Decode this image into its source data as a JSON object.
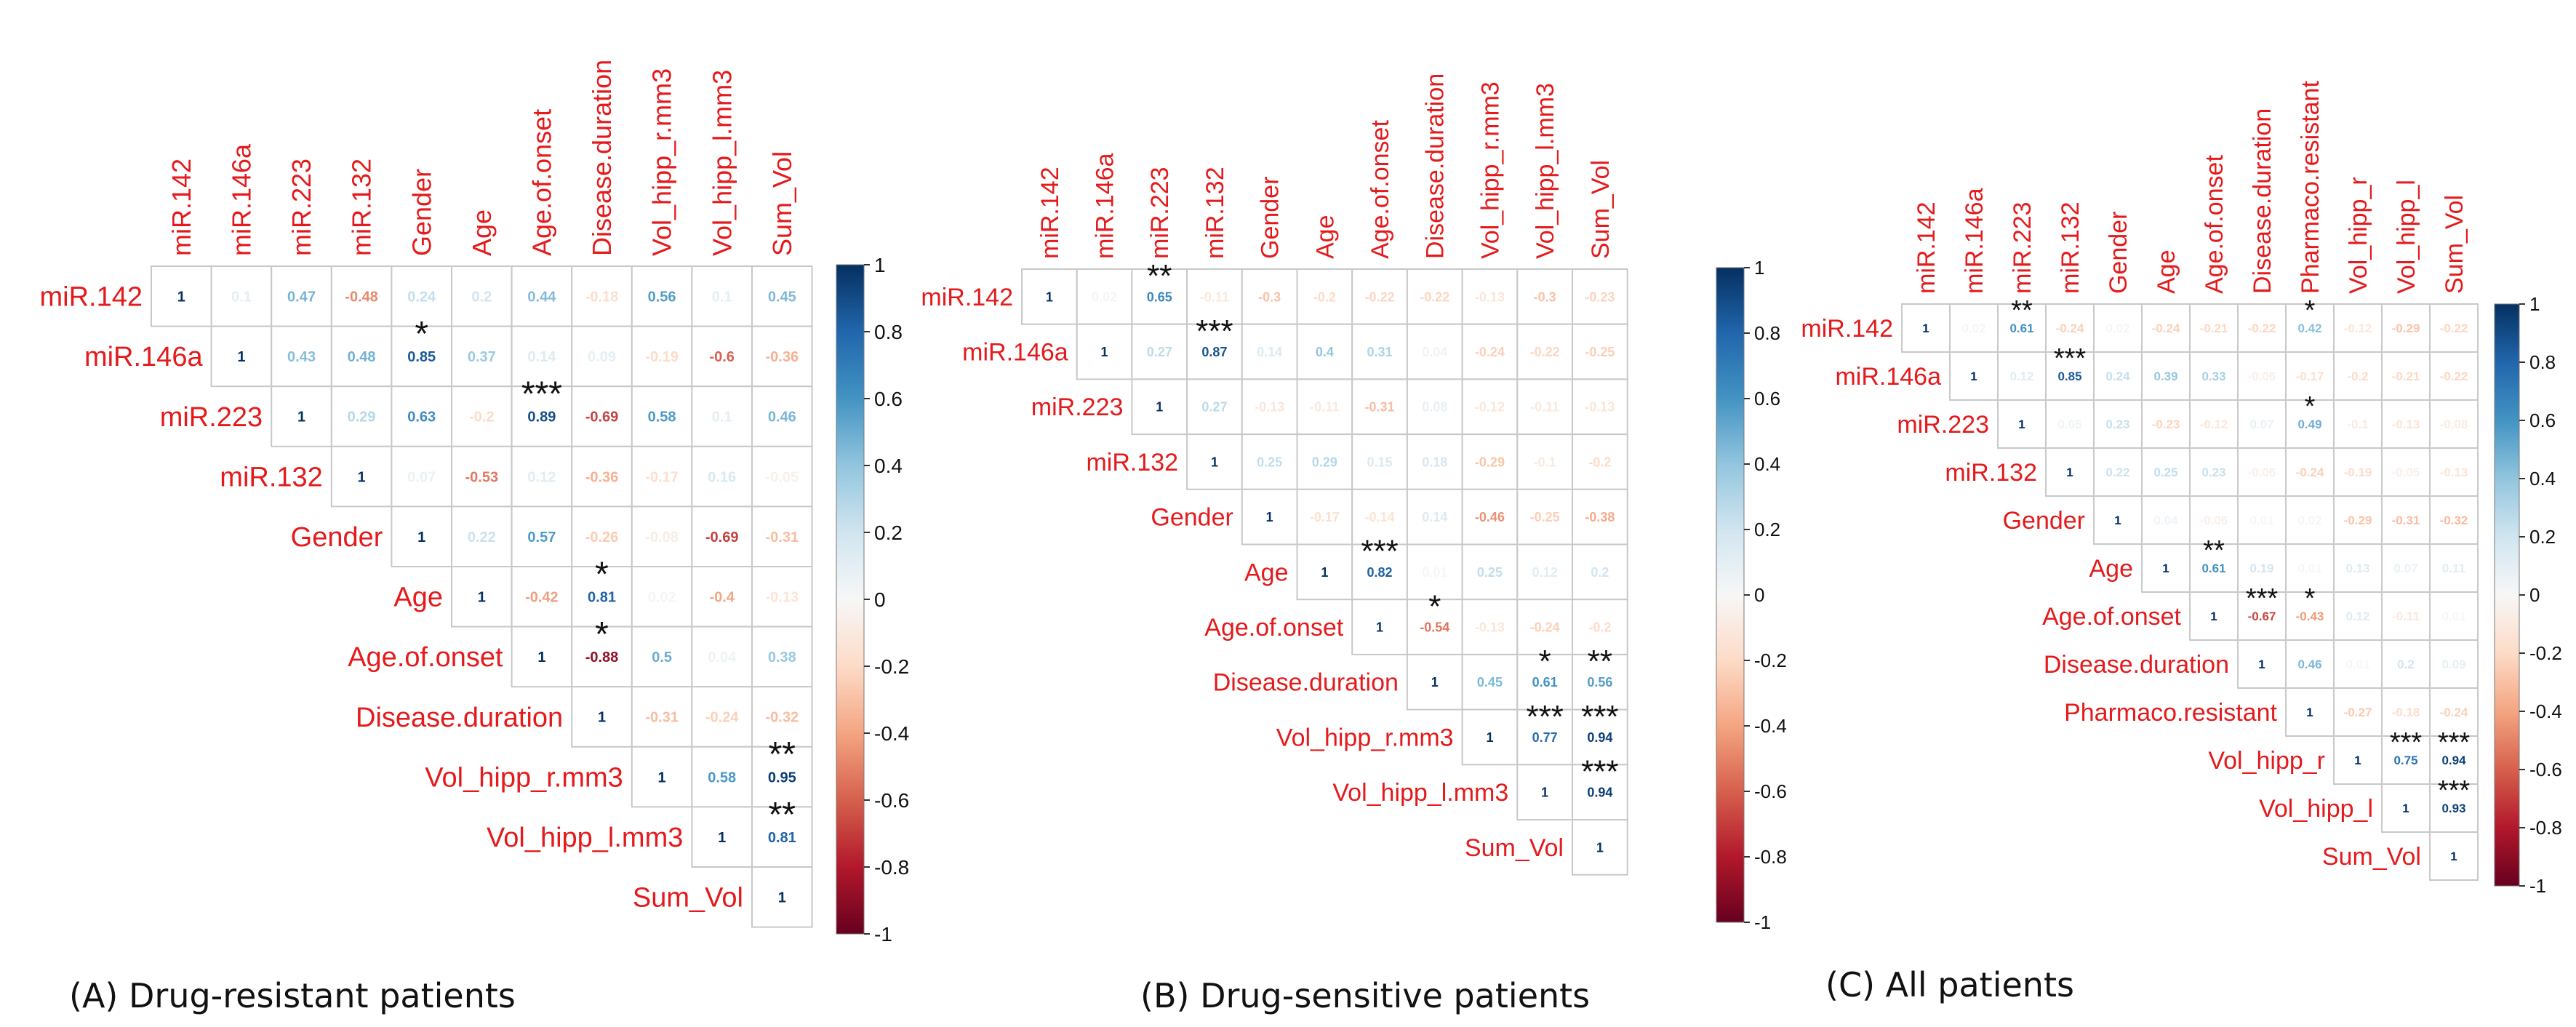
{
  "chart_data": [
    {
      "type": "heatmap",
      "title": "(A) Drug-resistant patients",
      "variables": [
        "miR.142",
        "miR.146a",
        "miR.223",
        "miR.132",
        "Gender",
        "Age",
        "Age.of.onset",
        "Disease.duration",
        "Vol_hipp_r.mm3",
        "Vol_hipp_l.mm3",
        "Sum_Vol"
      ],
      "matrix": [
        [
          1,
          0.1,
          0.47,
          -0.48,
          0.24,
          0.2,
          0.44,
          -0.18,
          0.56,
          0.1,
          0.45
        ],
        [
          null,
          1,
          0.43,
          0.48,
          0.85,
          0.37,
          0.14,
          0.09,
          -0.19,
          -0.6,
          -0.36
        ],
        [
          null,
          null,
          1,
          0.29,
          0.63,
          -0.2,
          0.89,
          -0.69,
          0.58,
          0.1,
          0.46
        ],
        [
          null,
          null,
          null,
          1,
          0.07,
          -0.53,
          0.12,
          -0.36,
          -0.17,
          0.16,
          -0.05
        ],
        [
          null,
          null,
          null,
          null,
          1,
          0.22,
          0.57,
          -0.26,
          -0.08,
          -0.69,
          -0.31
        ],
        [
          null,
          null,
          null,
          null,
          null,
          1,
          -0.42,
          0.81,
          0.02,
          -0.4,
          -0.13
        ],
        [
          null,
          null,
          null,
          null,
          null,
          null,
          1,
          -0.88,
          0.5,
          0.04,
          0.38
        ],
        [
          null,
          null,
          null,
          null,
          null,
          null,
          null,
          1,
          -0.31,
          -0.24,
          -0.32
        ],
        [
          null,
          null,
          null,
          null,
          null,
          null,
          null,
          null,
          1,
          0.58,
          0.95
        ],
        [
          null,
          null,
          null,
          null,
          null,
          null,
          null,
          null,
          null,
          1,
          0.81
        ],
        [
          null,
          null,
          null,
          null,
          null,
          null,
          null,
          null,
          null,
          null,
          1
        ]
      ],
      "significance": [
        {
          "row": 1,
          "col": 4,
          "mark": "*"
        },
        {
          "row": 2,
          "col": 6,
          "mark": "***"
        },
        {
          "row": 5,
          "col": 7,
          "mark": "*"
        },
        {
          "row": 6,
          "col": 7,
          "mark": "*"
        },
        {
          "row": 8,
          "col": 10,
          "mark": "**"
        },
        {
          "row": 9,
          "col": 10,
          "mark": "**"
        }
      ],
      "colorbar": {
        "range": [
          -1,
          1
        ],
        "ticks": [
          "1",
          "0.8",
          "0.6",
          "0.4",
          "0.2",
          "0",
          "-0.2",
          "-0.4",
          "-0.6",
          "-0.8",
          "-1"
        ]
      }
    },
    {
      "type": "heatmap",
      "title": "(B) Drug-sensitive patients",
      "variables": [
        "miR.142",
        "miR.146a",
        "miR.223",
        "miR.132",
        "Gender",
        "Age",
        "Age.of.onset",
        "Disease.duration",
        "Vol_hipp_r.mm3",
        "Vol_hipp_l.mm3",
        "Sum_Vol"
      ],
      "matrix": [
        [
          1,
          0.02,
          0.65,
          -0.11,
          -0.3,
          -0.2,
          -0.22,
          -0.22,
          -0.13,
          -0.3,
          -0.23
        ],
        [
          null,
          1,
          0.27,
          0.87,
          0.14,
          0.4,
          0.31,
          0.04,
          -0.24,
          -0.22,
          -0.25
        ],
        [
          null,
          null,
          1,
          0.27,
          -0.13,
          -0.11,
          -0.31,
          0.08,
          -0.12,
          -0.11,
          -0.13
        ],
        [
          null,
          null,
          null,
          1,
          0.25,
          0.29,
          0.15,
          0.18,
          -0.29,
          -0.1,
          -0.2
        ],
        [
          null,
          null,
          null,
          null,
          1,
          -0.17,
          -0.14,
          0.14,
          -0.46,
          -0.25,
          -0.38
        ],
        [
          null,
          null,
          null,
          null,
          null,
          1,
          0.82,
          0.01,
          0.25,
          0.12,
          0.2
        ],
        [
          null,
          null,
          null,
          null,
          null,
          null,
          1,
          -0.54,
          -0.13,
          -0.24,
          -0.2
        ],
        [
          null,
          null,
          null,
          null,
          null,
          null,
          null,
          1,
          0.45,
          0.61,
          0.56
        ],
        [
          null,
          null,
          null,
          null,
          null,
          null,
          null,
          null,
          1,
          0.77,
          0.94
        ],
        [
          null,
          null,
          null,
          null,
          null,
          null,
          null,
          null,
          null,
          1,
          0.94
        ],
        [
          null,
          null,
          null,
          null,
          null,
          null,
          null,
          null,
          null,
          null,
          1
        ]
      ],
      "significance": [
        {
          "row": 0,
          "col": 2,
          "mark": "**"
        },
        {
          "row": 1,
          "col": 3,
          "mark": "***"
        },
        {
          "row": 5,
          "col": 6,
          "mark": "***"
        },
        {
          "row": 6,
          "col": 7,
          "mark": "*"
        },
        {
          "row": 7,
          "col": 9,
          "mark": "*"
        },
        {
          "row": 7,
          "col": 10,
          "mark": "**"
        },
        {
          "row": 8,
          "col": 9,
          "mark": "***"
        },
        {
          "row": 8,
          "col": 10,
          "mark": "***"
        },
        {
          "row": 9,
          "col": 10,
          "mark": "***"
        }
      ],
      "colorbar": {
        "range": [
          -1,
          1
        ],
        "ticks": [
          "1",
          "0.8",
          "0.6",
          "0.4",
          "0.2",
          "0",
          "-0.2",
          "-0.4",
          "-0.6",
          "-0.8",
          "-1"
        ]
      }
    },
    {
      "type": "heatmap",
      "title": "(C) All patients",
      "variables": [
        "miR.142",
        "miR.146a",
        "miR.223",
        "miR.132",
        "Gender",
        "Age",
        "Age.of.onset",
        "Disease.duration",
        "Pharmaco.resistant",
        "Vol_hipp_r",
        "Vol_hipp_l",
        "Sum_Vol"
      ],
      "matrix": [
        [
          1,
          0.02,
          0.61,
          -0.24,
          0.02,
          -0.24,
          -0.21,
          -0.22,
          0.42,
          -0.12,
          -0.29,
          -0.22
        ],
        [
          null,
          1,
          0.12,
          0.85,
          0.24,
          0.39,
          0.33,
          -0.06,
          -0.17,
          -0.2,
          -0.21,
          -0.22
        ],
        [
          null,
          null,
          1,
          0.05,
          0.23,
          -0.23,
          -0.12,
          0.07,
          0.49,
          -0.1,
          -0.13,
          -0.08
        ],
        [
          null,
          null,
          null,
          1,
          0.22,
          0.25,
          0.23,
          -0.06,
          -0.24,
          -0.19,
          -0.05,
          -0.13
        ],
        [
          null,
          null,
          null,
          null,
          1,
          0.04,
          -0.06,
          0.01,
          0.02,
          -0.29,
          -0.31,
          -0.32
        ],
        [
          null,
          null,
          null,
          null,
          null,
          1,
          0.61,
          0.19,
          0.01,
          0.13,
          0.07,
          0.11
        ],
        [
          null,
          null,
          null,
          null,
          null,
          null,
          1,
          -0.67,
          -0.43,
          0.12,
          -0.11,
          0.01
        ],
        [
          null,
          null,
          null,
          null,
          null,
          null,
          null,
          1,
          0.46,
          0.01,
          0.2,
          0.09
        ],
        [
          null,
          null,
          null,
          null,
          null,
          null,
          null,
          null,
          1,
          -0.27,
          -0.18,
          -0.24
        ],
        [
          null,
          null,
          null,
          null,
          null,
          null,
          null,
          null,
          null,
          1,
          0.75,
          0.94
        ],
        [
          null,
          null,
          null,
          null,
          null,
          null,
          null,
          null,
          null,
          null,
          1,
          0.93
        ],
        [
          null,
          null,
          null,
          null,
          null,
          null,
          null,
          null,
          null,
          null,
          null,
          1
        ]
      ],
      "significance": [
        {
          "row": 0,
          "col": 2,
          "mark": "**"
        },
        {
          "row": 0,
          "col": 8,
          "mark": "*"
        },
        {
          "row": 1,
          "col": 3,
          "mark": "***"
        },
        {
          "row": 2,
          "col": 8,
          "mark": "*"
        },
        {
          "row": 5,
          "col": 6,
          "mark": "**"
        },
        {
          "row": 6,
          "col": 7,
          "mark": "***"
        },
        {
          "row": 6,
          "col": 8,
          "mark": "*"
        },
        {
          "row": 9,
          "col": 10,
          "mark": "***"
        },
        {
          "row": 9,
          "col": 11,
          "mark": "***"
        },
        {
          "row": 10,
          "col": 11,
          "mark": "***"
        }
      ],
      "colorbar": {
        "range": [
          -1,
          1
        ],
        "ticks": [
          "1",
          "0.8",
          "0.6",
          "0.4",
          "0.2",
          "0",
          "-0.2",
          "-0.4",
          "-0.6",
          "-0.8",
          "-1"
        ]
      }
    }
  ],
  "colors": {
    "negative": "#67001f",
    "neutral": "#f7f7f7",
    "positive": "#053061",
    "label": "#e41a1c",
    "grid": "#cccccc"
  }
}
